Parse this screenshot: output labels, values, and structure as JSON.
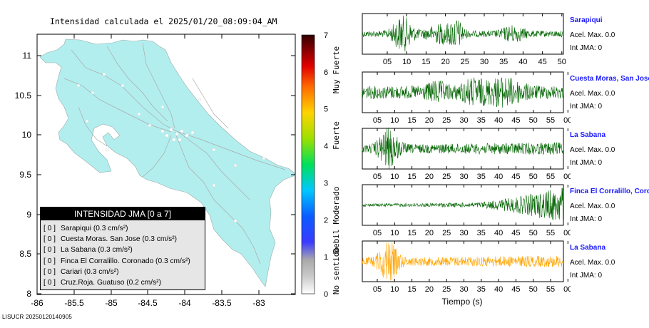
{
  "map": {
    "title": "Intensidad calculada el 2025/01/20_08:09:04_AM",
    "lon_ticks": [
      "-86",
      "-85.5",
      "-85",
      "-84.5",
      "-84",
      "-83.5",
      "-83"
    ],
    "lat_ticks": [
      "11",
      "10.5",
      "10",
      "9.5",
      "9",
      "8.5",
      "8"
    ],
    "colorbar": {
      "ticks": [
        "7",
        "6",
        "5",
        "4",
        "3",
        "2",
        "1",
        "0"
      ],
      "labels": [
        "Muy Fuerte",
        "Fuerte",
        "Moderado",
        "Debil",
        "No sentido"
      ]
    },
    "legend": {
      "title": "INTENSIDAD JMA [0 a 7]",
      "rows": [
        {
          "level": "[ 0 ]",
          "text": "Sarapiqui (0.3 cm/s²)"
        },
        {
          "level": "[ 0 ]",
          "text": "Cuesta Moras. San Jose (0.3 cm/s²)"
        },
        {
          "level": "[ 0 ]",
          "text": "La Sabana (0.3 cm/s²)"
        },
        {
          "level": "[ 0 ]",
          "text": "Finca El Corralillo. Coronado (0.3 cm/s²)"
        },
        {
          "level": "[ 0 ]",
          "text": "Cariari (0.3 cm/s²)"
        },
        {
          "level": "[ 0 ]",
          "text": "Cruz.Roja. Guatuso (0.2 cm/s²)"
        }
      ]
    },
    "footer": "LISUCR 20250120140905"
  },
  "stations": [
    {
      "name": "Sarapiqui",
      "acel": "Acel. Max. 0.0",
      "int": "Int JMA: 0",
      "color": "#006400",
      "ticks": [
        "05",
        "10",
        "15",
        "20",
        "25",
        "30",
        "35",
        "40",
        "45",
        "50"
      ]
    },
    {
      "name": "Cuesta Moras, San Jose",
      "acel": "Acel. Max. 0.0",
      "int": "Int JMA: 0",
      "color": "#006400",
      "ticks": [
        "05",
        "10",
        "15",
        "20",
        "25",
        "30",
        "35",
        "40",
        "45",
        "50",
        "55",
        "00"
      ]
    },
    {
      "name": "La Sabana",
      "acel": "Acel. Max. 0.0",
      "int": "Int JMA: 0",
      "color": "#006400",
      "ticks": [
        "05",
        "10",
        "15",
        "20",
        "25",
        "30",
        "35",
        "40",
        "45",
        "50",
        "55",
        "00"
      ]
    },
    {
      "name": "Finca El Corralillo, Coronado",
      "acel": "Acel. Max. 0.0",
      "int": "Int JMA: 0",
      "color": "#006400",
      "ticks": [
        "05",
        "10",
        "15",
        "20",
        "25",
        "30",
        "35",
        "40",
        "45",
        "50",
        "55",
        "00"
      ]
    },
    {
      "name": "La Sabana",
      "acel": "Acel. Max. 0.0",
      "int": "Int JMA: 0",
      "color": "#FFA500",
      "ticks": [
        "05",
        "10",
        "15",
        "20",
        "25",
        "30",
        "35",
        "40",
        "45",
        "50",
        "55",
        "00"
      ]
    }
  ],
  "xlabel": "Tiempo (s)",
  "chart_data": [
    {
      "type": "heatmap",
      "title": "Intensidad calculada el 2025/01/20_08:09:04_AM",
      "xlim": [
        -86,
        -82.5
      ],
      "ylim": [
        8,
        11.25
      ],
      "x_ticks": [
        -86,
        -85.5,
        -85,
        -84.5,
        -84,
        -83.5,
        -83
      ],
      "y_ticks": [
        8,
        8.5,
        9,
        9.5,
        10,
        10.5,
        11
      ],
      "value_range": [
        0,
        7
      ],
      "value_shown": 0,
      "colorbar_labels": [
        "Muy Fuerte",
        "Fuerte",
        "Moderado",
        "Debil",
        "No sentido"
      ],
      "legend_placement": "bottom-left"
    },
    {
      "type": "line",
      "series": [
        {
          "name": "Sarapiqui",
          "x_ticks": [
            5,
            10,
            15,
            20,
            25,
            30,
            35,
            40,
            45,
            50
          ]
        },
        {
          "name": "Cuesta Moras, San Jose",
          "x_ticks": [
            5,
            10,
            15,
            20,
            25,
            30,
            35,
            40,
            45,
            50,
            55,
            0
          ]
        },
        {
          "name": "La Sabana",
          "x_ticks": [
            5,
            10,
            15,
            20,
            25,
            30,
            35,
            40,
            45,
            50,
            55,
            0
          ]
        },
        {
          "name": "Finca El Corralillo, Coronado",
          "x_ticks": [
            5,
            10,
            15,
            20,
            25,
            30,
            35,
            40,
            45,
            50,
            55,
            0
          ]
        },
        {
          "name": "La Sabana",
          "x_ticks": [
            5,
            10,
            15,
            20,
            25,
            30,
            35,
            40,
            45,
            50,
            55,
            0
          ]
        }
      ],
      "xlabel": "Tiempo (s)"
    }
  ]
}
